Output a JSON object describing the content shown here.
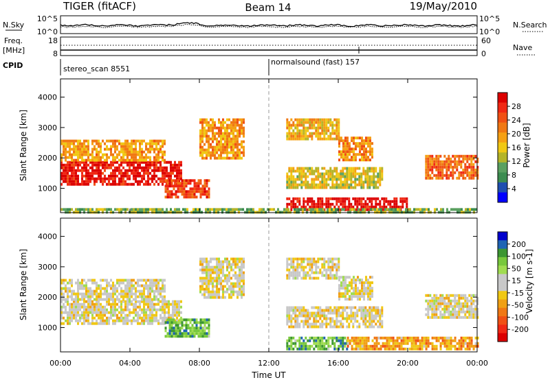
{
  "header": {
    "radar": "TIGER (fitACF)",
    "beam": "Beam 14",
    "date": "19/May/2010"
  },
  "noise_panel": {
    "left_label": "N.Sky",
    "right_label": "N.Search",
    "y_ticks": [
      "10^5",
      "10^0"
    ]
  },
  "freq_panel": {
    "left_label_line1": "Freq.",
    "left_label_line2": "[MHz]",
    "left_ticks": [
      "18",
      "8"
    ],
    "right_label": "Nave",
    "right_ticks": [
      "60",
      "0"
    ]
  },
  "cpid": {
    "label": "CPID",
    "programs": [
      {
        "name": "stereo_scan 8551",
        "start_hour": 0
      },
      {
        "name": "normalsound (fast) 157",
        "start_hour": 12
      }
    ]
  },
  "x_axis": {
    "label": "Time UT",
    "ticks": [
      "00:00",
      "04:00",
      "08:00",
      "12:00",
      "16:00",
      "20:00",
      "00:00"
    ],
    "range_hours": [
      0,
      24
    ]
  },
  "chart_data": [
    {
      "type": "heatmap",
      "name": "power",
      "ylabel": "Slant Range [km]",
      "yticks": [
        "1000",
        "2000",
        "3000",
        "4000"
      ],
      "ylim": [
        200,
        4600
      ],
      "colorbar_label": "Power [dB]",
      "colorbar_ticks": [
        "4",
        "8",
        "12",
        "16",
        "20",
        "24",
        "28"
      ],
      "colorbar_colors": [
        "#0000ff",
        "#1f4fb0",
        "#3c8c50",
        "#5aa060",
        "#b4b428",
        "#f0c814",
        "#f5a014",
        "#f07814",
        "#f05014",
        "#f02814",
        "#dc0000"
      ],
      "regions": [
        {
          "t": [
            0.0,
            7.0
          ],
          "r": [
            1100,
            1900
          ],
          "level": 0.92
        },
        {
          "t": [
            0.0,
            6.0
          ],
          "r": [
            1900,
            2600
          ],
          "level": 0.6
        },
        {
          "t": [
            6.0,
            8.5
          ],
          "r": [
            700,
            1300
          ],
          "level": 0.8
        },
        {
          "t": [
            8.0,
            10.5
          ],
          "r": [
            2000,
            3300
          ],
          "level": 0.62
        },
        {
          "t": [
            13.0,
            16.0
          ],
          "r": [
            2600,
            3300
          ],
          "level": 0.55
        },
        {
          "t": [
            16.0,
            18.0
          ],
          "r": [
            1900,
            2700
          ],
          "level": 0.66
        },
        {
          "t": [
            13.0,
            18.5
          ],
          "r": [
            1000,
            1700
          ],
          "level": 0.48
        },
        {
          "t": [
            13.0,
            20.0
          ],
          "r": [
            300,
            700
          ],
          "level": 0.95
        },
        {
          "t": [
            21.0,
            24.0
          ],
          "r": [
            1300,
            2100
          ],
          "level": 0.72
        },
        {
          "t": [
            0.0,
            24.0
          ],
          "r": [
            200,
            350
          ],
          "level": 0.35
        }
      ]
    },
    {
      "type": "heatmap",
      "name": "velocity",
      "ylabel": "Slant Range [km]",
      "yticks": [
        "1000",
        "2000",
        "3000",
        "4000"
      ],
      "ylim": [
        200,
        4600
      ],
      "colorbar_label": "Velocity [m s-1]",
      "colorbar_ticks": [
        "200",
        "100",
        "50",
        "15",
        "-15",
        "-50",
        "-100",
        "-200"
      ],
      "colorbar_colors": [
        "#0000cd",
        "#1e64b4",
        "#3c9632",
        "#78c83c",
        "#a0dc50",
        "#c8c8c8",
        "#c8c8c8",
        "#f0c814",
        "#f0a014",
        "#f07814",
        "#f05014",
        "#f02814",
        "#dc0000"
      ],
      "regions": [
        {
          "t": [
            0.0,
            7.0
          ],
          "r": [
            1100,
            1900
          ],
          "level": 0.5
        },
        {
          "t": [
            0.0,
            6.0
          ],
          "r": [
            1900,
            2600
          ],
          "level": 0.5
        },
        {
          "t": [
            6.0,
            8.5
          ],
          "r": [
            700,
            1300
          ],
          "level": 0.25
        },
        {
          "t": [
            8.0,
            10.5
          ],
          "r": [
            2000,
            3300
          ],
          "level": 0.5
        },
        {
          "t": [
            13.0,
            16.0
          ],
          "r": [
            2600,
            3300
          ],
          "level": 0.5
        },
        {
          "t": [
            16.0,
            18.0
          ],
          "r": [
            1900,
            2700
          ],
          "level": 0.5
        },
        {
          "t": [
            13.0,
            18.5
          ],
          "r": [
            1000,
            1700
          ],
          "level": 0.52
        },
        {
          "t": [
            13.0,
            16.5
          ],
          "r": [
            300,
            700
          ],
          "level": 0.25
        },
        {
          "t": [
            16.5,
            24.0
          ],
          "r": [
            300,
            700
          ],
          "level": 0.66
        },
        {
          "t": [
            21.0,
            24.0
          ],
          "r": [
            1300,
            2100
          ],
          "level": 0.5
        }
      ]
    }
  ]
}
